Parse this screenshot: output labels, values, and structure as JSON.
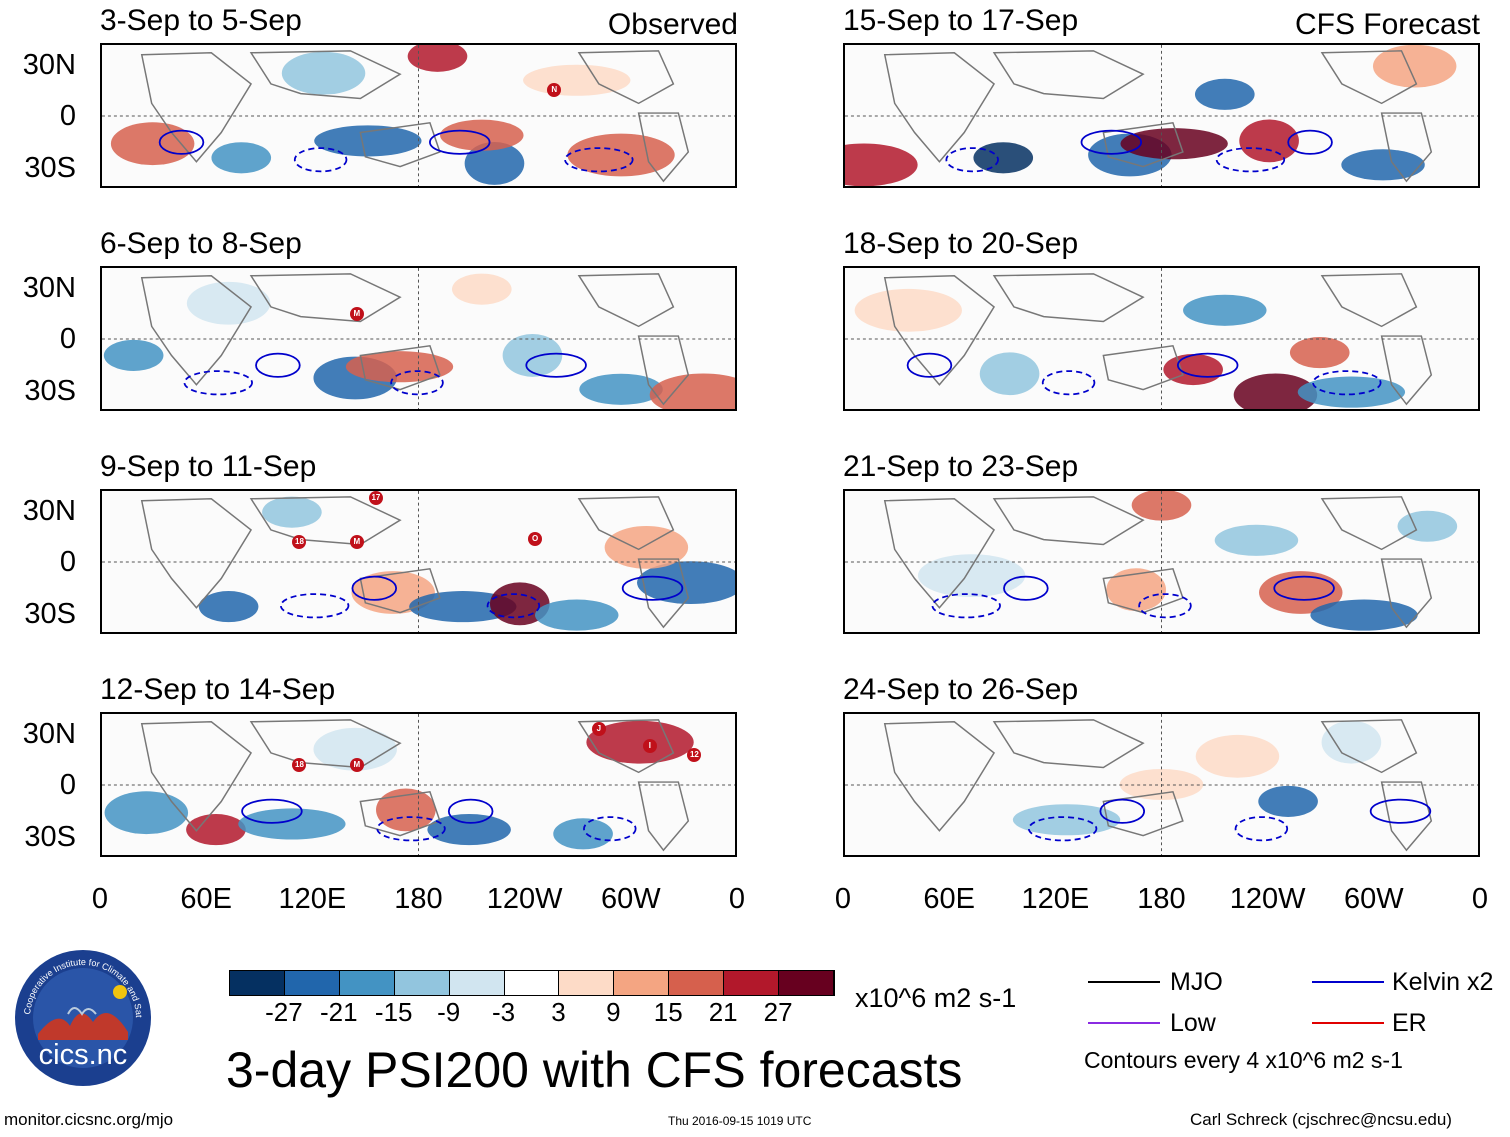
{
  "header": {
    "left_tag": "Observed",
    "right_tag": "CFS Forecast"
  },
  "panels": {
    "left": [
      {
        "title": "3-Sep to 5-Sep"
      },
      {
        "title": "6-Sep to 8-Sep"
      },
      {
        "title": "9-Sep to 11-Sep"
      },
      {
        "title": "12-Sep to 14-Sep"
      }
    ],
    "right": [
      {
        "title": "15-Sep to 17-Sep"
      },
      {
        "title": "18-Sep to 20-Sep"
      },
      {
        "title": "21-Sep to 23-Sep"
      },
      {
        "title": "24-Sep to 26-Sep"
      }
    ]
  },
  "axes": {
    "lat_labels": [
      "30N",
      "0",
      "30S"
    ],
    "lon_labels": [
      "0",
      "60E",
      "120E",
      "180",
      "120W",
      "60W",
      "0"
    ]
  },
  "storms": [
    {
      "panel": 0,
      "label": "N"
    },
    {
      "panel": 1,
      "label": "M"
    },
    {
      "panel": 2,
      "label": "17"
    },
    {
      "panel": 2,
      "label": "18"
    },
    {
      "panel": 2,
      "label": "M"
    },
    {
      "panel": 2,
      "label": "O"
    },
    {
      "panel": 3,
      "label": "18"
    },
    {
      "panel": 3,
      "label": "M"
    },
    {
      "panel": 3,
      "label": "J"
    },
    {
      "panel": 3,
      "label": "I"
    },
    {
      "panel": 3,
      "label": "12"
    }
  ],
  "colorbar": {
    "ticks": [
      "-27",
      "-21",
      "-15",
      "-9",
      "-3",
      "3",
      "9",
      "15",
      "21",
      "27"
    ],
    "units": "x10^6 m2 s-1",
    "colors": [
      "#053061",
      "#2166ac",
      "#4393c3",
      "#92c5de",
      "#d1e5f0",
      "#ffffff",
      "#fddbc7",
      "#f4a582",
      "#d6604d",
      "#b2182b",
      "#67001f"
    ]
  },
  "legend": {
    "items": [
      {
        "label": "MJO",
        "color": "#000000"
      },
      {
        "label": "Kelvin x2",
        "color": "#0000cc"
      },
      {
        "label": "Low",
        "color": "#8a2be2"
      },
      {
        "label": "ER",
        "color": "#e00000"
      }
    ],
    "note": "Contours every 4 x10^6 m2 s-1"
  },
  "main_title": "3-day PSI200 with CFS forecasts",
  "logo": {
    "text": "cics.nc",
    "ring_text": "Cooperative Institute for Climate and Satellites"
  },
  "footer": {
    "url": "monitor.cicsnc.org/mjo",
    "timestamp": "Thu 2016-09-15 1019 UTC",
    "author": "Carl Schreck (cjschrec@ncsu.edu)"
  }
}
